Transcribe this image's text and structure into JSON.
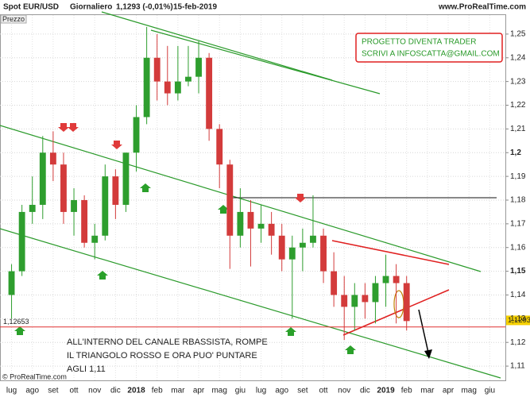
{
  "chart_data": {
    "type": "candlestick",
    "header": {
      "instrument": "Spot EUR/USD",
      "period": "Giornaliero",
      "last": "1,1293 (-0,01%)",
      "date": "15-feb-2019",
      "site": "www.ProRealTime.com"
    },
    "axis_label": "Prezzo",
    "info_box": [
      "PROGETTO DIVENTA TRADER",
      "SCRIVI A INFOSCATTA@GMAIL.COM"
    ],
    "annotation": [
      "ALL'INTERNO DEL CANALE RBASSISTA, ROMPE",
      "IL TRIANGOLO ROSSO E ORA PUO' PUNTARE",
      "AGLI 1,11"
    ],
    "copyright": "© ProRealTime.com",
    "up_color": "#2e9e2e",
    "down_color": "#d33b3b",
    "categories": [
      "lug",
      null,
      "ago",
      null,
      "set",
      null,
      "ott",
      null,
      "nov",
      null,
      "dic",
      null,
      "2018",
      null,
      "feb",
      null,
      "mar",
      null,
      "apr",
      null,
      "mag",
      null,
      "giu",
      null,
      "lug",
      null,
      "ago",
      null,
      "set",
      null,
      "ott",
      null,
      "nov",
      null,
      "dic",
      null,
      "2019",
      null,
      "feb",
      null,
      "mar",
      null,
      "apr",
      null,
      "mag",
      null,
      "giu",
      null
    ],
    "open": [
      1.14,
      1.15,
      1.175,
      1.178,
      1.2,
      1.195,
      1.175,
      1.18,
      1.162,
      1.165,
      1.19,
      1.178,
      1.2,
      1.215,
      1.24,
      1.23,
      1.225,
      1.23,
      1.232,
      1.24,
      1.21,
      1.195,
      1.165,
      1.175,
      1.168,
      1.17,
      1.165,
      1.155,
      1.16,
      1.162,
      1.165,
      1.15,
      1.14,
      1.135,
      1.14,
      1.137,
      1.145,
      1.148,
      1.145,
      null,
      null,
      null,
      null,
      null,
      null,
      null,
      null,
      null
    ],
    "high": [
      1.153,
      1.178,
      1.19,
      1.207,
      1.209,
      1.2,
      1.185,
      1.182,
      1.17,
      1.195,
      1.193,
      1.2,
      1.22,
      1.253,
      1.25,
      1.245,
      1.245,
      1.245,
      1.247,
      1.242,
      1.212,
      1.197,
      1.185,
      1.18,
      1.178,
      1.175,
      1.17,
      1.165,
      1.168,
      1.182,
      1.168,
      1.158,
      1.148,
      1.145,
      1.145,
      1.148,
      1.157,
      1.153,
      1.148,
      null,
      null,
      null,
      null,
      null,
      null,
      null,
      null,
      null
    ],
    "low": [
      1.13,
      1.148,
      1.17,
      1.172,
      1.188,
      1.17,
      1.165,
      1.16,
      1.155,
      1.163,
      1.172,
      1.175,
      1.192,
      1.212,
      1.222,
      1.22,
      1.222,
      1.228,
      1.225,
      1.205,
      1.185,
      1.151,
      1.16,
      1.152,
      1.162,
      1.157,
      1.15,
      1.13,
      1.15,
      1.16,
      1.145,
      1.135,
      1.121,
      1.125,
      1.13,
      1.128,
      1.135,
      1.128,
      1.125,
      null,
      null,
      null,
      null,
      null,
      null,
      null,
      null,
      null
    ],
    "close": [
      1.15,
      1.175,
      1.178,
      1.2,
      1.195,
      1.175,
      1.18,
      1.162,
      1.165,
      1.19,
      1.178,
      1.2,
      1.215,
      1.24,
      1.23,
      1.225,
      1.23,
      1.232,
      1.24,
      1.21,
      1.195,
      1.165,
      1.175,
      1.168,
      1.17,
      1.165,
      1.155,
      1.16,
      1.162,
      1.165,
      1.15,
      1.14,
      1.135,
      1.14,
      1.137,
      1.145,
      1.148,
      1.145,
      1.129,
      null,
      null,
      null,
      null,
      null,
      null,
      null,
      null,
      null
    ],
    "ylim": [
      1.104,
      1.258
    ],
    "yticks": [
      {
        "value": 1.11,
        "label": "1,11"
      },
      {
        "value": 1.12,
        "label": "1,12"
      },
      {
        "value": 1.13,
        "label": "1,13"
      },
      {
        "value": 1.14,
        "label": "1,14"
      },
      {
        "value": 1.15,
        "label": "1,15"
      },
      {
        "value": 1.16,
        "label": "1,16"
      },
      {
        "value": 1.17,
        "label": "1,17"
      },
      {
        "value": 1.18,
        "label": "1,18"
      },
      {
        "value": 1.19,
        "label": "1,19"
      },
      {
        "value": 1.2,
        "label": "1,2"
      },
      {
        "value": 1.21,
        "label": "1,21"
      },
      {
        "value": 1.22,
        "label": "1,22"
      },
      {
        "value": 1.23,
        "label": "1,23"
      },
      {
        "value": 1.24,
        "label": "1,24"
      },
      {
        "value": 1.25,
        "label": "1,25"
      }
    ],
    "levels": [
      {
        "value": 1.12653,
        "label": "1,12653",
        "color": "#e03030"
      },
      {
        "value": 1.1293,
        "label": "1,1293",
        "color": "#f5d000"
      }
    ]
  }
}
